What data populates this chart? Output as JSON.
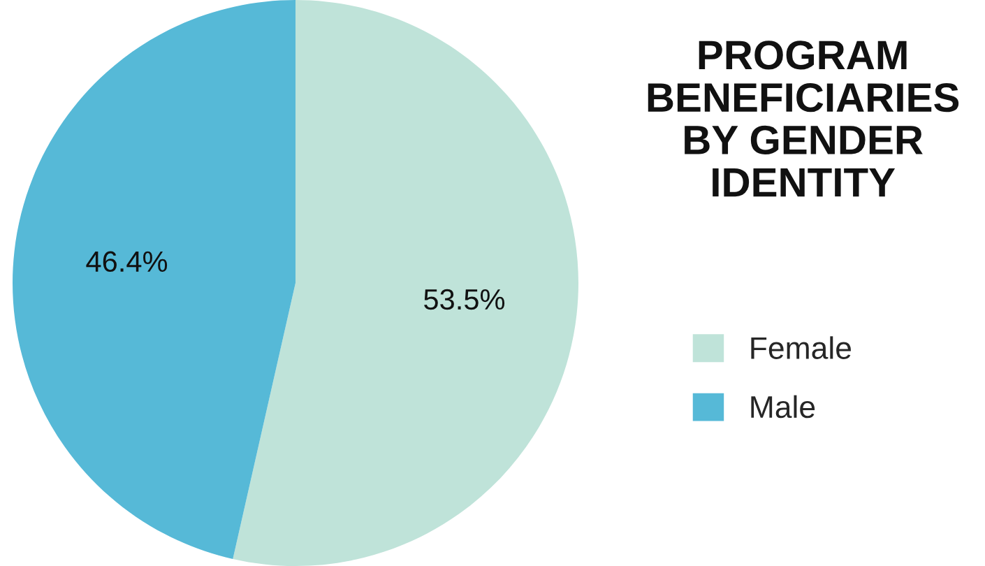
{
  "chart_data": {
    "type": "pie",
    "title": "PROGRAM\nBENEFICIARIES\nBY GENDER\nIDENTITY",
    "categories": [
      "Female",
      "Male"
    ],
    "values": [
      53.5,
      46.4
    ],
    "value_labels": [
      "53.5%",
      "46.4%"
    ],
    "colors": [
      "#bfe3d9",
      "#56b9d7"
    ],
    "legend": "right"
  }
}
